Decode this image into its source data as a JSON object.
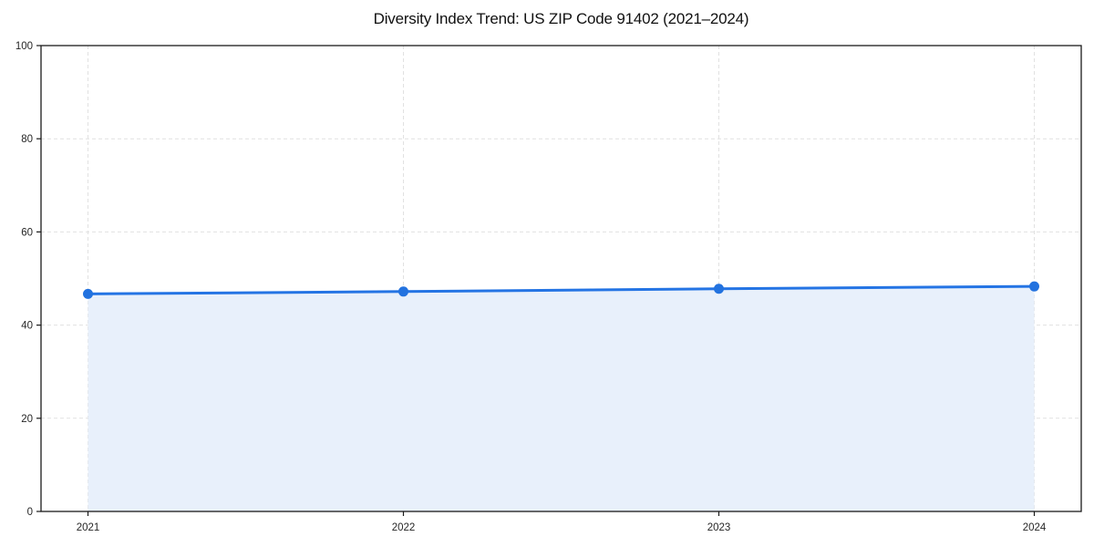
{
  "page": {
    "background": "#ffffff"
  },
  "chart_data": {
    "type": "line",
    "title": "Diversity Index Trend: US ZIP Code 91402 (2021–2024)",
    "x": [
      2021,
      2022,
      2023,
      2024
    ],
    "x_tick_labels": [
      "2021",
      "2022",
      "2023",
      "2024"
    ],
    "series": [
      {
        "name": "Diversity Index",
        "values": [
          46.7,
          47.2,
          47.8,
          48.3
        ]
      }
    ],
    "xlabel": "",
    "ylabel": "",
    "ylim": [
      0,
      100
    ],
    "y_ticks": [
      0,
      20,
      40,
      60,
      80,
      100
    ],
    "grid": "on",
    "grid_style": "dashed",
    "legend": "none",
    "area_fill": true,
    "marker": "circle",
    "colors": {
      "line": "#2474e4",
      "marker": "#2272df",
      "area": "#e8f0fb",
      "grid": "#e1e1e1",
      "spine": "#1a1a1a",
      "tick_label": "#262626",
      "title": "#111111",
      "background": "#ffffff"
    }
  }
}
